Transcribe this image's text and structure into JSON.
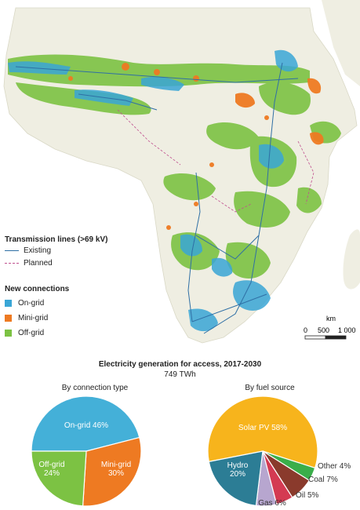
{
  "legend": {
    "transmission_title": "Transmission lines (>69 kV)",
    "existing_label": "Existing",
    "planned_label": "Planned",
    "connections_title": "New connections",
    "ongrid_label": "On-grid",
    "minigrid_label": "Mini-grid",
    "offgrid_label": "Off-grid",
    "colors": {
      "ongrid": "#3aa6d6",
      "minigrid": "#ee7a22",
      "offgrid": "#7cc243",
      "existing_line": "#2f6fa5",
      "planned_line": "#c0508f"
    }
  },
  "scale": {
    "unit": "km",
    "ticks": [
      "0",
      "500",
      "1 000"
    ]
  },
  "charts": {
    "title": "Electricity generation for access, 2017-2030",
    "subtitle": "749 TWh"
  },
  "chart_data": [
    {
      "type": "pie",
      "title": "By connection type",
      "slices": [
        {
          "label": "On-grid 46%",
          "value": 46,
          "color": "#44b0d8"
        },
        {
          "label": "Mini-grid 30%",
          "value": 30,
          "color": "#ee7a22"
        },
        {
          "label": "Off-grid 24%",
          "value": 24,
          "color": "#7cc243"
        }
      ]
    },
    {
      "type": "pie",
      "title": "By fuel source",
      "slices": [
        {
          "label": "Solar PV 58%",
          "value": 58,
          "color": "#f7b41c"
        },
        {
          "label": "Other 4%",
          "value": 4,
          "color": "#3aae4a"
        },
        {
          "label": "Coal 7%",
          "value": 7,
          "color": "#8a3a2c"
        },
        {
          "label": "Oil 5%",
          "value": 5,
          "color": "#d43a52"
        },
        {
          "label": "Gas 6%",
          "value": 6,
          "color": "#b7a6cf"
        },
        {
          "label": "Hydro 20%",
          "value": 20,
          "color": "#2c7d95"
        }
      ]
    }
  ]
}
